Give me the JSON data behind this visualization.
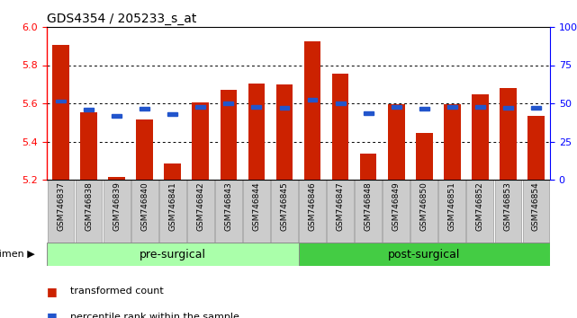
{
  "title": "GDS4354 / 205233_s_at",
  "samples": [
    "GSM746837",
    "GSM746838",
    "GSM746839",
    "GSM746840",
    "GSM746841",
    "GSM746842",
    "GSM746843",
    "GSM746844",
    "GSM746845",
    "GSM746846",
    "GSM746847",
    "GSM746848",
    "GSM746849",
    "GSM746850",
    "GSM746851",
    "GSM746852",
    "GSM746853",
    "GSM746854"
  ],
  "bar_values": [
    5.905,
    5.555,
    5.215,
    5.515,
    5.285,
    5.605,
    5.67,
    5.705,
    5.7,
    5.925,
    5.755,
    5.335,
    5.595,
    5.445,
    5.595,
    5.645,
    5.68,
    5.535
  ],
  "percentile_values": [
    5.612,
    5.568,
    5.535,
    5.57,
    5.543,
    5.58,
    5.6,
    5.58,
    5.578,
    5.62,
    5.6,
    5.547,
    5.58,
    5.57,
    5.582,
    5.58,
    5.577,
    5.575
  ],
  "ylim_low": 5.2,
  "ylim_high": 6.0,
  "yticks": [
    5.2,
    5.4,
    5.6,
    5.8,
    6.0
  ],
  "right_yticks": [
    0,
    25,
    50,
    75,
    100
  ],
  "bar_color": "#cc2200",
  "blue_color": "#2255cc",
  "pre_surgical_count": 9,
  "groups": [
    "pre-surgical",
    "post-surgical"
  ],
  "legend_bar": "transformed count",
  "legend_dot": "percentile rank within the sample",
  "bg_xticklabel": "#cccccc",
  "bg_presurgical": "#aaffaa",
  "bg_postsurgical": "#44cc44",
  "border_color": "#888888"
}
